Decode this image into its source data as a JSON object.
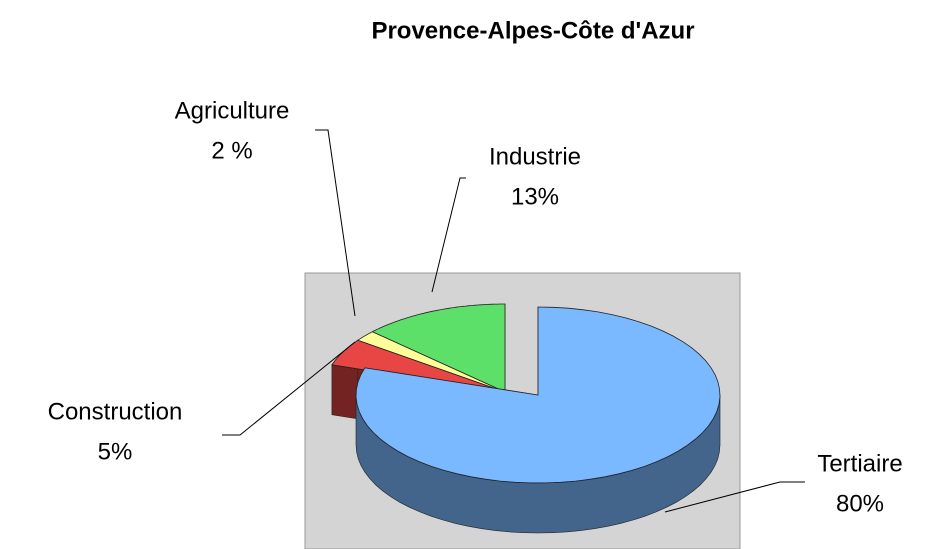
{
  "chart_data": {
    "type": "pie3d",
    "title": "Provence-Alpes-Côte d'Azur",
    "categories": [
      "Tertiaire",
      "Construction",
      "Agriculture",
      "Industrie"
    ],
    "values": [
      80,
      5,
      2,
      13
    ],
    "value_labels": [
      "80%",
      "5%",
      "2 %",
      "13%"
    ],
    "colors": [
      "#7ab8ff",
      "#e84545",
      "#ffff99",
      "#5ce06a"
    ]
  }
}
